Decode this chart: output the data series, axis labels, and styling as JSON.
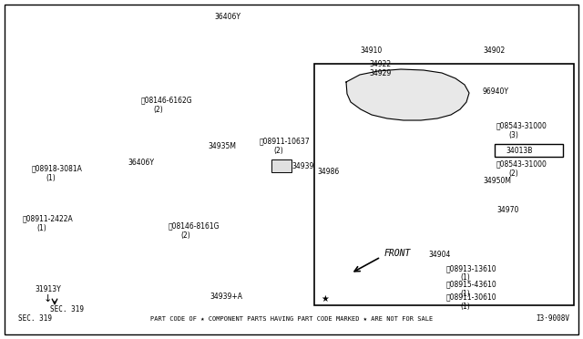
{
  "bg_color": "#ffffff",
  "line_color": "#000000",
  "gray_color": "#666666",
  "fig_width": 6.4,
  "fig_height": 3.72,
  "dpi": 100,
  "footer_text": "PART CODE OF ★ COMPONENT PARTS HAVING PART CODE MARKED ★ ARE NOT FOR SALE",
  "sec_text": "SEC. 319",
  "ref_code": "I3·9008V",
  "front_text": "FRONT"
}
